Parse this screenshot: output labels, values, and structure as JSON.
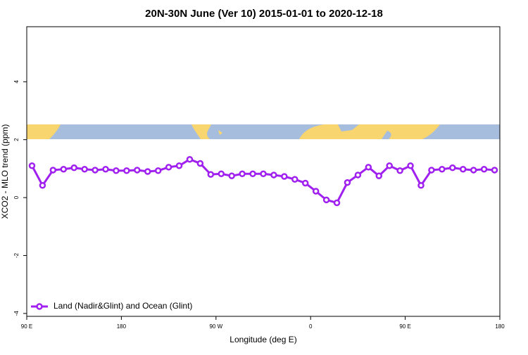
{
  "chart_data": {
    "type": "line",
    "title": "20N-30N June (Ver 10)   2015-01-01 to 2020-12-18",
    "x_label": "Longitude (deg E)",
    "y_label": "XCO2 - MLO trend (ppm)",
    "x": [
      95,
      105,
      115,
      125,
      135,
      145,
      155,
      165,
      175,
      185,
      195,
      205,
      215,
      225,
      235,
      245,
      255,
      265,
      275,
      285,
      295,
      305,
      315,
      325,
      335,
      345,
      355,
      365,
      375,
      385,
      395,
      405,
      415,
      425,
      435,
      445,
      455,
      465,
      475,
      485,
      495,
      505,
      515,
      525,
      535
    ],
    "series": [
      {
        "name": "Land (Nadir&Glint) and Ocean (Glint)",
        "color": "#a020f0",
        "values": [
          1.1,
          0.42,
          0.95,
          0.98,
          1.03,
          0.98,
          0.95,
          0.98,
          0.93,
          0.93,
          0.95,
          0.9,
          0.93,
          1.05,
          1.1,
          1.32,
          1.18,
          0.8,
          0.82,
          0.75,
          0.82,
          0.82,
          0.82,
          0.78,
          0.73,
          0.63,
          0.5,
          0.22,
          -0.08,
          -0.18,
          0.52,
          0.78,
          1.05,
          0.75,
          1.1,
          0.93,
          1.1,
          0.42,
          0.95,
          0.98,
          1.03,
          0.98,
          0.95,
          0.98,
          0.95
        ]
      }
    ],
    "xlim": [
      90,
      540
    ],
    "xticks": [
      {
        "value": 90,
        "label": "90 E"
      },
      180,
      {
        "value": 270,
        "label": "90 W"
      },
      {
        "value": 360,
        "label": "0"
      },
      {
        "value": 450,
        "label": "90 E"
      },
      {
        "value": 540,
        "label": "180"
      }
    ],
    "ylim": [
      -4.1,
      5.9
    ],
    "yticks": [
      -4,
      -2,
      0,
      2,
      4
    ],
    "legend": "bottomleft"
  }
}
